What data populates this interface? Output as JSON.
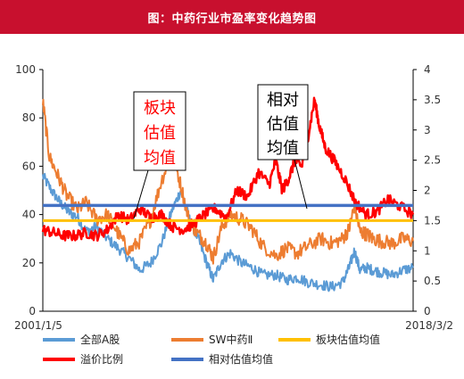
{
  "title": "图：中药行业市盈率变化趋势图",
  "chart_data": {
    "type": "line",
    "x_start_label": "2001/1/5",
    "x_end_label": "2018/3/2",
    "x_range": [
      "2001-01-05",
      "2018-03-02"
    ],
    "y_left": {
      "range": [
        0,
        100
      ],
      "ticks": [
        "0",
        "20",
        "40",
        "60",
        "80",
        "100"
      ]
    },
    "y_right": {
      "range": [
        0,
        4
      ],
      "ticks": [
        "0",
        "0.5",
        "1",
        "1.5",
        "2",
        "2.5",
        "3",
        "3.5",
        "4"
      ]
    },
    "series": [
      {
        "name": "全部A股",
        "axis": "left",
        "color": "#5b9bd5",
        "x": [
          2001.0,
          2001.4,
          2001.8,
          2002.2,
          2002.6,
          2003.0,
          2003.5,
          2004.0,
          2004.5,
          2005.0,
          2005.5,
          2006.0,
          2006.5,
          2007.0,
          2007.4,
          2007.8,
          2008.2,
          2008.6,
          2008.9,
          2009.3,
          2009.7,
          2010.2,
          2010.7,
          2011.2,
          2011.8,
          2012.3,
          2012.8,
          2013.3,
          2013.9,
          2014.4,
          2014.9,
          2015.2,
          2015.45,
          2015.7,
          2016.0,
          2016.3,
          2016.7,
          2017.2,
          2017.7,
          2018.17
        ],
        "y": [
          56,
          50,
          45,
          41,
          39,
          33,
          35,
          30,
          26,
          22,
          17,
          20,
          28,
          42,
          50,
          38,
          30,
          20,
          13,
          21,
          24,
          20,
          18,
          15,
          15,
          13,
          14,
          12,
          11,
          10,
          12,
          18,
          25,
          17,
          18,
          17,
          16,
          15,
          17,
          18
        ]
      },
      {
        "name": "SW中药Ⅱ",
        "axis": "left",
        "color": "#ed7d31",
        "x": [
          2001.0,
          2001.3,
          2001.7,
          2002.1,
          2002.6,
          2003.0,
          2003.5,
          2004.0,
          2004.5,
          2005.0,
          2005.5,
          2006.0,
          2006.5,
          2007.0,
          2007.4,
          2007.8,
          2008.2,
          2008.6,
          2008.9,
          2009.3,
          2009.7,
          2010.2,
          2010.7,
          2011.2,
          2011.8,
          2012.3,
          2012.8,
          2013.3,
          2013.9,
          2014.4,
          2014.9,
          2015.2,
          2015.45,
          2015.7,
          2016.0,
          2016.3,
          2016.7,
          2017.2,
          2017.7,
          2018.17
        ],
        "y": [
          87,
          64,
          56,
          48,
          42,
          45,
          38,
          40,
          32,
          25,
          29,
          38,
          54,
          66,
          52,
          37,
          32,
          28,
          22,
          35,
          40,
          38,
          34,
          27,
          23,
          26,
          24,
          27,
          30,
          28,
          30,
          34,
          44,
          33,
          32,
          30,
          29,
          28,
          30,
          29
        ]
      },
      {
        "name": "溢价比例",
        "axis": "right",
        "color": "#ff0000",
        "x": [
          2001.0,
          2001.5,
          2002.0,
          2002.5,
          2003.0,
          2003.5,
          2004.0,
          2004.5,
          2005.0,
          2005.5,
          2006.0,
          2006.5,
          2007.0,
          2007.5,
          2008.0,
          2008.5,
          2009.0,
          2009.5,
          2010.0,
          2010.5,
          2011.0,
          2011.5,
          2011.8,
          2012.1,
          2012.4,
          2012.7,
          2013.0,
          2013.3,
          2013.6,
          2013.8,
          2014.1,
          2014.5,
          2015.0,
          2015.5,
          2016.0,
          2016.5,
          2017.0,
          2017.5,
          2018.17
        ],
        "y": [
          1.35,
          1.3,
          1.25,
          1.25,
          1.3,
          1.25,
          1.35,
          1.6,
          1.5,
          1.7,
          1.55,
          1.6,
          1.4,
          1.35,
          1.45,
          1.6,
          1.7,
          1.55,
          2.0,
          1.9,
          2.3,
          2.1,
          2.5,
          2.0,
          2.2,
          2.5,
          2.4,
          2.9,
          3.5,
          3.1,
          2.7,
          2.5,
          2.2,
          1.8,
          1.6,
          1.65,
          1.85,
          1.75,
          1.6
        ]
      },
      {
        "name": "板块估值均值",
        "axis": "left",
        "color": "#ffc000",
        "x": [
          2001.0,
          2018.17
        ],
        "y": [
          37.5,
          37.5
        ]
      },
      {
        "name": "相对估值均值",
        "axis": "right",
        "color": "#4472c4",
        "x": [
          2001.0,
          2018.17
        ],
        "y": [
          1.75,
          1.75
        ]
      }
    ],
    "legend": [
      {
        "name": "全部A股",
        "color": "#5b9bd5"
      },
      {
        "name": "SW中药Ⅱ",
        "color": "#ed7d31"
      },
      {
        "name": "板块估值均值",
        "color": "#ffc000"
      },
      {
        "name": "溢价比例",
        "color": "#ff0000"
      },
      {
        "name": "相对估值均值",
        "color": "#4472c4"
      }
    ],
    "annotations": [
      {
        "lines": [
          "板块",
          "估值",
          "均值"
        ],
        "color": "#ff0000",
        "points_to": "板块估值均值"
      },
      {
        "lines": [
          "相对",
          "估值",
          "均值"
        ],
        "color": "#000000",
        "points_to": "相对估值均值"
      }
    ],
    "grid": false,
    "legend_position": "bottom"
  }
}
